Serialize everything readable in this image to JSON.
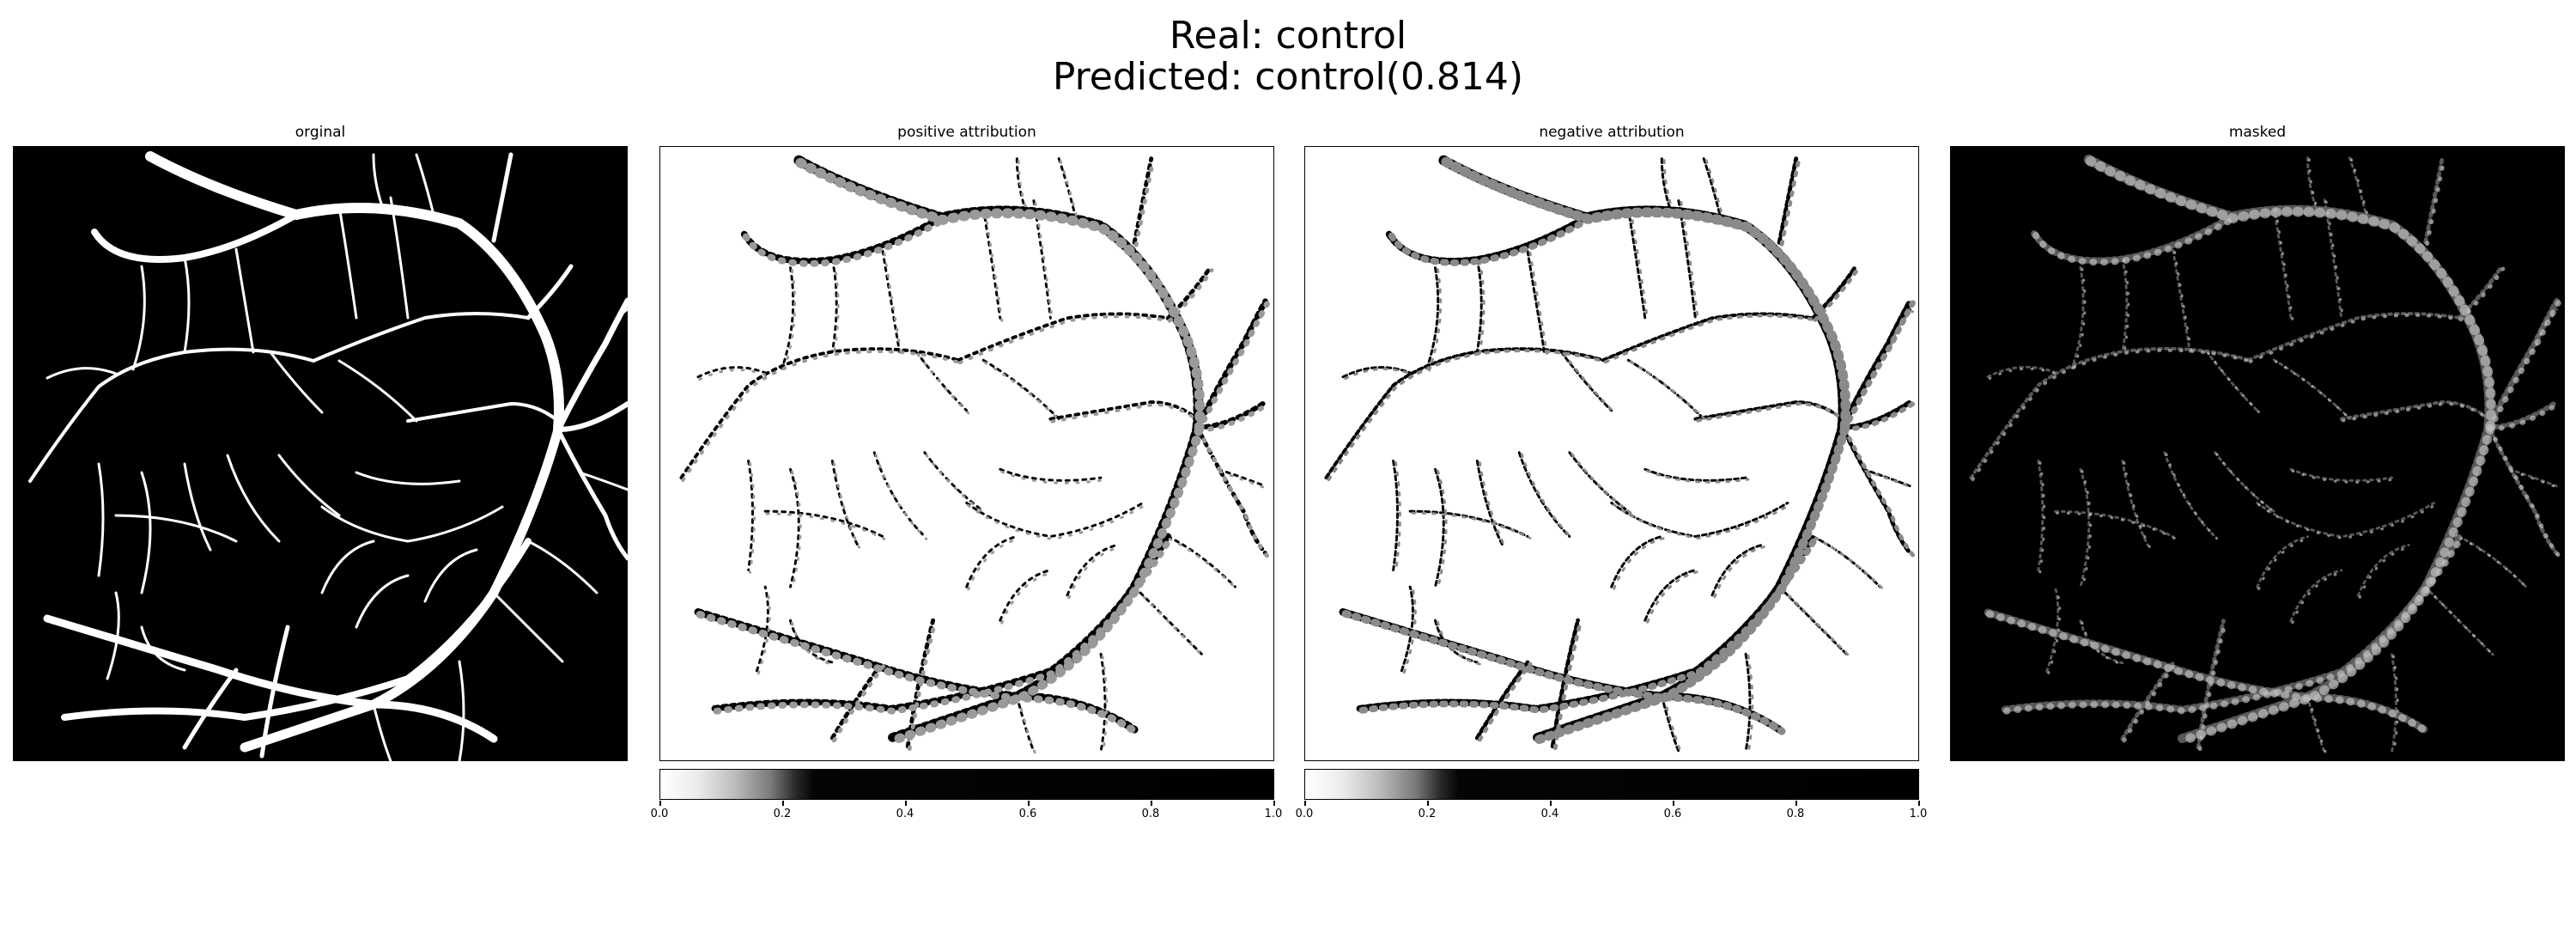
{
  "title": {
    "line1": "Real: control",
    "line2": "Predicted: control(0.814)"
  },
  "panels": [
    {
      "title": "orginal"
    },
    {
      "title": "positive attribution"
    },
    {
      "title": "negative attribution"
    },
    {
      "title": "masked"
    }
  ],
  "colorbar": {
    "ticks": [
      "0.0",
      "0.2",
      "0.4",
      "0.6",
      "0.8",
      "1.0"
    ]
  },
  "colors": {
    "background": "#ffffff",
    "image_background_dark": "#000000",
    "vessel": "#ffffff",
    "attribution": "#000000"
  }
}
